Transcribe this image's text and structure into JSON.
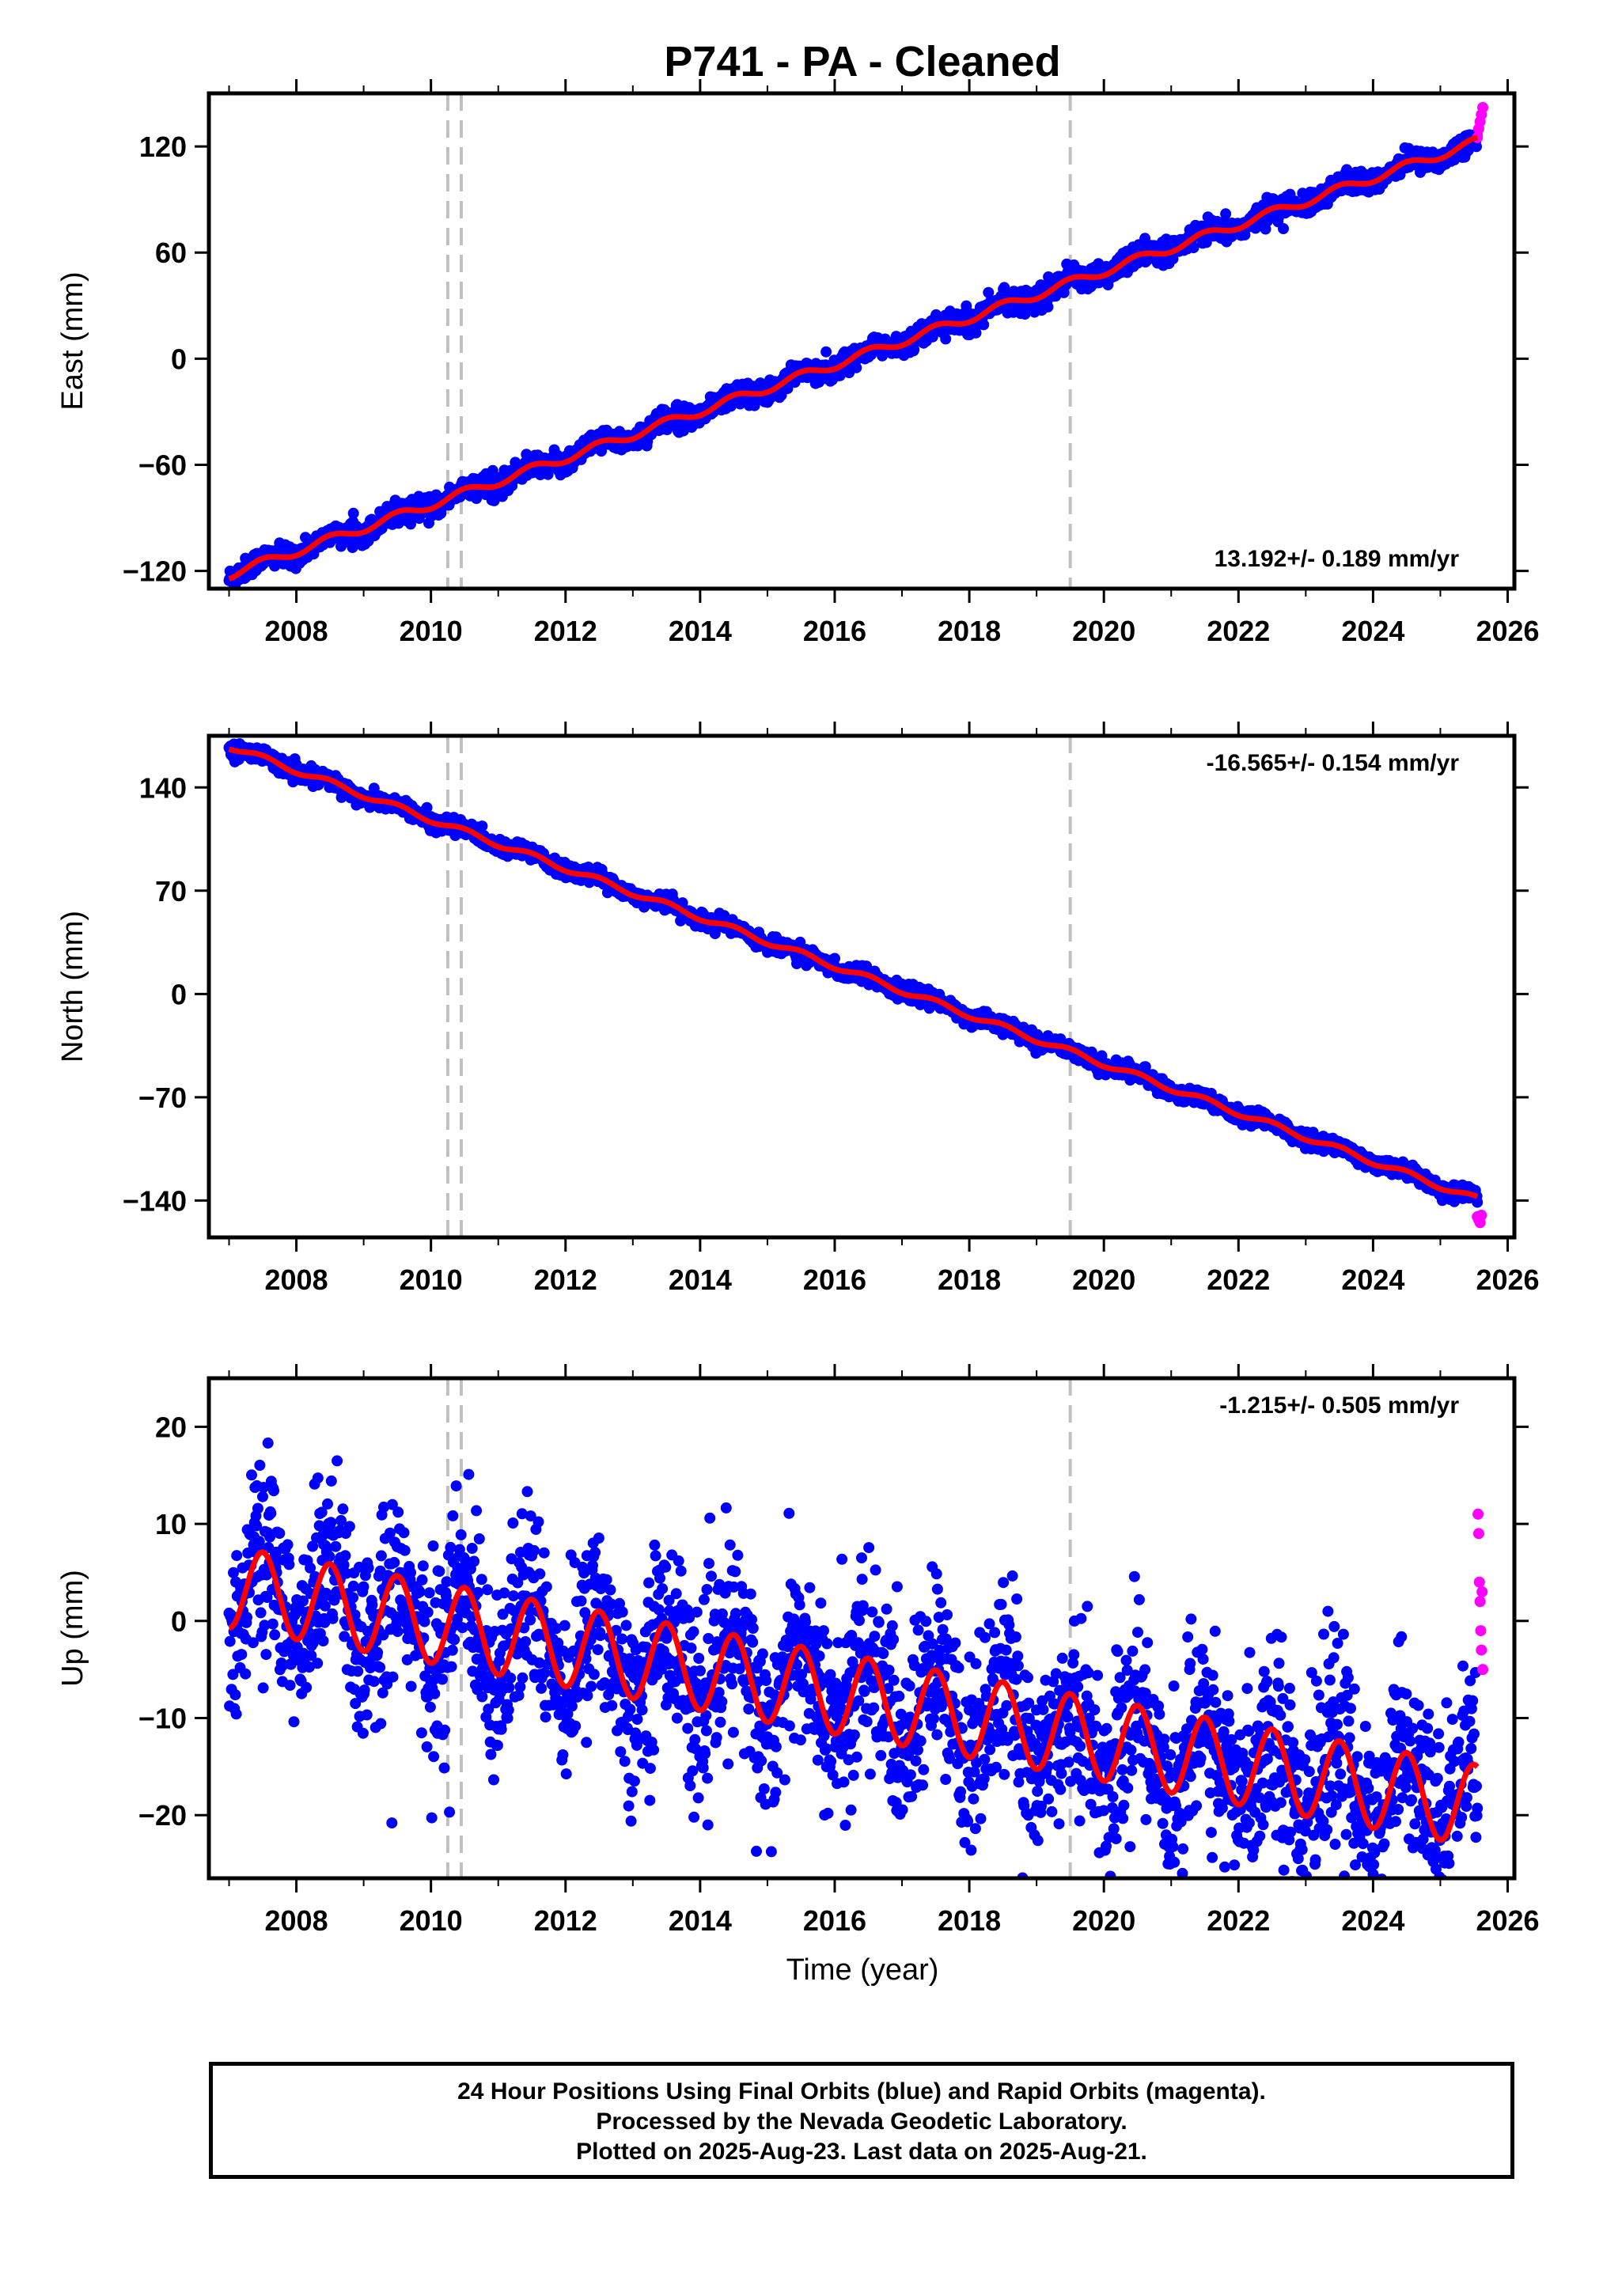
{
  "title": "P741  - PA - Cleaned",
  "colors": {
    "final_orbits": "#0000ff",
    "rapid_orbits": "#ff00ff",
    "model_fit": "#ff0000",
    "event_lines": "#c0c0c0",
    "frame": "#000000"
  },
  "x_ticks": [
    "2008",
    "2010",
    "2012",
    "2014",
    "2016",
    "2018",
    "2020",
    "2022",
    "2024",
    "2026"
  ],
  "xlabel": "Time (year)",
  "footer": {
    "line1": "24 Hour Positions Using Final Orbits (blue) and Rapid Orbits (magenta).",
    "line2": "Processed by the Nevada Geodetic Laboratory.",
    "line3": "Plotted on 2025-Aug-23. Last data on 2025-Aug-21."
  },
  "chart_data": [
    {
      "type": "scatter",
      "ylabel": "East (mm)",
      "rate_label": "13.192+/- 0.189 mm/yr",
      "rate_position": "bottom-right",
      "xlim": [
        2006.7,
        2026.1
      ],
      "ylim": [
        -130,
        150
      ],
      "yticks": [
        -120,
        -60,
        0,
        60,
        120
      ],
      "ytick_labels": [
        "−120",
        "−60",
        "0",
        "60",
        "120"
      ],
      "event_lines": [
        2010.25,
        2010.45,
        2019.5
      ],
      "data_start": 2007.0,
      "data_end": 2025.55,
      "trend_at_start": -122,
      "rate_mm_per_yr": 13.192,
      "annual_amplitude": 2.5,
      "scatter_sd": 3.0,
      "rapid_points": {
        "x": [
          2025.55,
          2025.57,
          2025.59,
          2025.61,
          2025.63
        ],
        "y": [
          125,
          130,
          134,
          138,
          142
        ]
      }
    },
    {
      "type": "scatter",
      "ylabel": "North (mm)",
      "rate_label": "-16.565+/- 0.154 mm/yr",
      "rate_position": "top-right",
      "xlim": [
        2006.7,
        2026.1
      ],
      "ylim": [
        -165,
        175
      ],
      "yticks": [
        -140,
        -70,
        0,
        70,
        140
      ],
      "ytick_labels": [
        "−140",
        "−70",
        "0",
        "70",
        "140"
      ],
      "event_lines": [
        2010.25,
        2010.45,
        2019.5
      ],
      "data_start": 2007.0,
      "data_end": 2025.55,
      "trend_at_start": 168,
      "rate_mm_per_yr": -16.565,
      "annual_amplitude": 2.0,
      "scatter_sd": 2.5,
      "rapid_points": {
        "x": [
          2025.55,
          2025.57,
          2025.59,
          2025.61
        ],
        "y": [
          -151,
          -153,
          -155,
          -150
        ]
      }
    },
    {
      "type": "scatter",
      "ylabel": "Up (mm)",
      "rate_label": "-1.215+/- 0.505 mm/yr",
      "rate_position": "top-right",
      "xlim": [
        2006.7,
        2026.1
      ],
      "ylim": [
        -26.5,
        25
      ],
      "yticks": [
        -20,
        -10,
        0,
        10,
        20
      ],
      "ytick_labels": [
        "−20",
        "−10",
        "0",
        "10",
        "20"
      ],
      "event_lines": [
        2010.25,
        2010.45,
        2019.5
      ],
      "data_start": 2007.0,
      "data_end": 2025.55,
      "trend_at_start": 3.5,
      "rate_mm_per_yr": -1.215,
      "annual_amplitude": 4.2,
      "scatter_sd": 4.8,
      "rapid_points": {
        "x": [
          2025.56,
          2025.57,
          2025.58,
          2025.59,
          2025.6,
          2025.61,
          2025.62,
          2025.63
        ],
        "y": [
          11,
          9,
          4,
          2,
          -1,
          -3,
          3,
          -5
        ]
      }
    }
  ]
}
